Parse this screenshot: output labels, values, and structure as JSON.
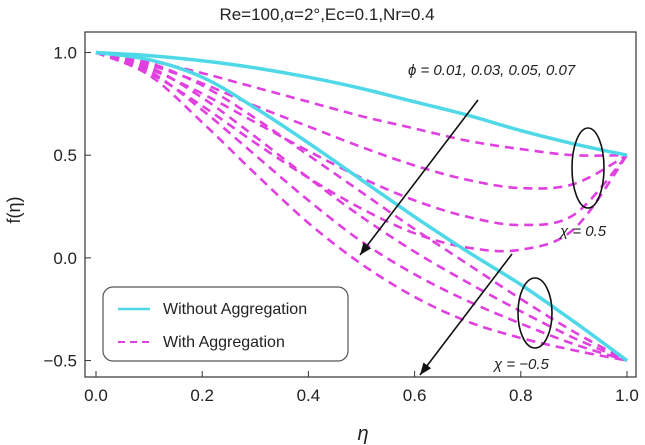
{
  "chart_data": {
    "type": "line",
    "title": "Re=100,α=2°,Ec=0.1,Nr=0.4",
    "xlabel": "η",
    "ylabel": "f(η)",
    "xlim": [
      0.0,
      1.0
    ],
    "ylim": [
      -0.58,
      1.1
    ],
    "xticks": [
      0.0,
      0.2,
      0.4,
      0.6,
      0.8,
      1.0
    ],
    "xtick_labels": [
      "0.0",
      "0.2",
      "0.4",
      "0.6",
      "0.8",
      "1.0"
    ],
    "yticks": [
      -0.5,
      0.0,
      0.5,
      1.0
    ],
    "ytick_labels": [
      "−0.5",
      "0.0",
      "0.5",
      "1.0"
    ],
    "colors": {
      "without": "#4ed8e8",
      "with": "#e040e0",
      "annotation": "#111111"
    },
    "legend": {
      "position": "bottom-left",
      "entries": [
        {
          "label": "Without Aggregation",
          "style": "solid"
        },
        {
          "label": "With Aggregation",
          "style": "dashed"
        }
      ]
    },
    "annotations": {
      "phi_label": "ϕ = 0.01, 0.03, 0.05, 0.07",
      "chi_pos_label": "χ = 0.5",
      "chi_neg_label": "χ = −0.5"
    },
    "series": [
      {
        "name": "Without Aggregation, χ=0.5",
        "style": "solid",
        "x": [
          0,
          0.1,
          0.2,
          0.3,
          0.4,
          0.5,
          0.6,
          0.7,
          0.8,
          0.9,
          1.0
        ],
        "y": [
          1.0,
          0.985,
          0.96,
          0.925,
          0.88,
          0.825,
          0.76,
          0.695,
          0.62,
          0.555,
          0.5
        ]
      },
      {
        "name": "Without Aggregation, χ=-0.5",
        "style": "solid",
        "x": [
          0,
          0.1,
          0.2,
          0.3,
          0.4,
          0.5,
          0.6,
          0.7,
          0.8,
          0.9,
          1.0
        ],
        "y": [
          1.0,
          0.965,
          0.88,
          0.73,
          0.56,
          0.38,
          0.2,
          0.03,
          -0.13,
          -0.31,
          -0.5
        ]
      },
      {
        "name": "With Aggregation, χ=0.5, ϕ=0.01",
        "style": "dashed",
        "x": [
          0,
          0.1,
          0.2,
          0.3,
          0.4,
          0.5,
          0.6,
          0.7,
          0.8,
          0.9,
          1.0
        ],
        "y": [
          1.0,
          0.96,
          0.9,
          0.83,
          0.76,
          0.69,
          0.63,
          0.57,
          0.53,
          0.5,
          0.5
        ]
      },
      {
        "name": "With Aggregation, χ=0.5, ϕ=0.03",
        "style": "dashed",
        "x": [
          0,
          0.1,
          0.2,
          0.3,
          0.4,
          0.5,
          0.6,
          0.7,
          0.8,
          0.9,
          1.0
        ],
        "y": [
          1.0,
          0.94,
          0.85,
          0.74,
          0.64,
          0.54,
          0.45,
          0.38,
          0.34,
          0.36,
          0.5
        ]
      },
      {
        "name": "With Aggregation, χ=0.5, ϕ=0.05",
        "style": "dashed",
        "x": [
          0,
          0.1,
          0.2,
          0.3,
          0.4,
          0.5,
          0.6,
          0.7,
          0.8,
          0.9,
          1.0
        ],
        "y": [
          1.0,
          0.92,
          0.8,
          0.66,
          0.52,
          0.39,
          0.28,
          0.2,
          0.16,
          0.21,
          0.5
        ]
      },
      {
        "name": "With Aggregation, χ=0.5, ϕ=0.07",
        "style": "dashed",
        "x": [
          0,
          0.1,
          0.2,
          0.3,
          0.4,
          0.5,
          0.6,
          0.7,
          0.8,
          0.9,
          1.0
        ],
        "y": [
          1.0,
          0.9,
          0.74,
          0.56,
          0.39,
          0.24,
          0.12,
          0.05,
          0.04,
          0.14,
          0.5
        ]
      },
      {
        "name": "With Aggregation, χ=-0.5, ϕ=0.01",
        "style": "dashed",
        "x": [
          0,
          0.1,
          0.2,
          0.3,
          0.4,
          0.5,
          0.6,
          0.7,
          0.8,
          0.9,
          1.0
        ],
        "y": [
          1.0,
          0.95,
          0.84,
          0.68,
          0.5,
          0.32,
          0.14,
          -0.03,
          -0.2,
          -0.36,
          -0.5
        ]
      },
      {
        "name": "With Aggregation, χ=-0.5, ϕ=0.03",
        "style": "dashed",
        "x": [
          0,
          0.1,
          0.2,
          0.3,
          0.4,
          0.5,
          0.6,
          0.7,
          0.8,
          0.9,
          1.0
        ],
        "y": [
          1.0,
          0.93,
          0.78,
          0.59,
          0.39,
          0.2,
          0.03,
          -0.12,
          -0.26,
          -0.39,
          -0.5
        ]
      },
      {
        "name": "With Aggregation, χ=-0.5, ϕ=0.05",
        "style": "dashed",
        "x": [
          0,
          0.1,
          0.2,
          0.3,
          0.4,
          0.5,
          0.6,
          0.7,
          0.8,
          0.9,
          1.0
        ],
        "y": [
          1.0,
          0.91,
          0.72,
          0.5,
          0.28,
          0.08,
          -0.08,
          -0.21,
          -0.32,
          -0.42,
          -0.5
        ]
      },
      {
        "name": "With Aggregation, χ=-0.5, ϕ=0.07",
        "style": "dashed",
        "x": [
          0,
          0.1,
          0.2,
          0.3,
          0.4,
          0.5,
          0.6,
          0.7,
          0.8,
          0.9,
          1.0
        ],
        "y": [
          1.0,
          0.89,
          0.66,
          0.41,
          0.17,
          -0.03,
          -0.19,
          -0.31,
          -0.39,
          -0.45,
          -0.5
        ]
      }
    ]
  }
}
